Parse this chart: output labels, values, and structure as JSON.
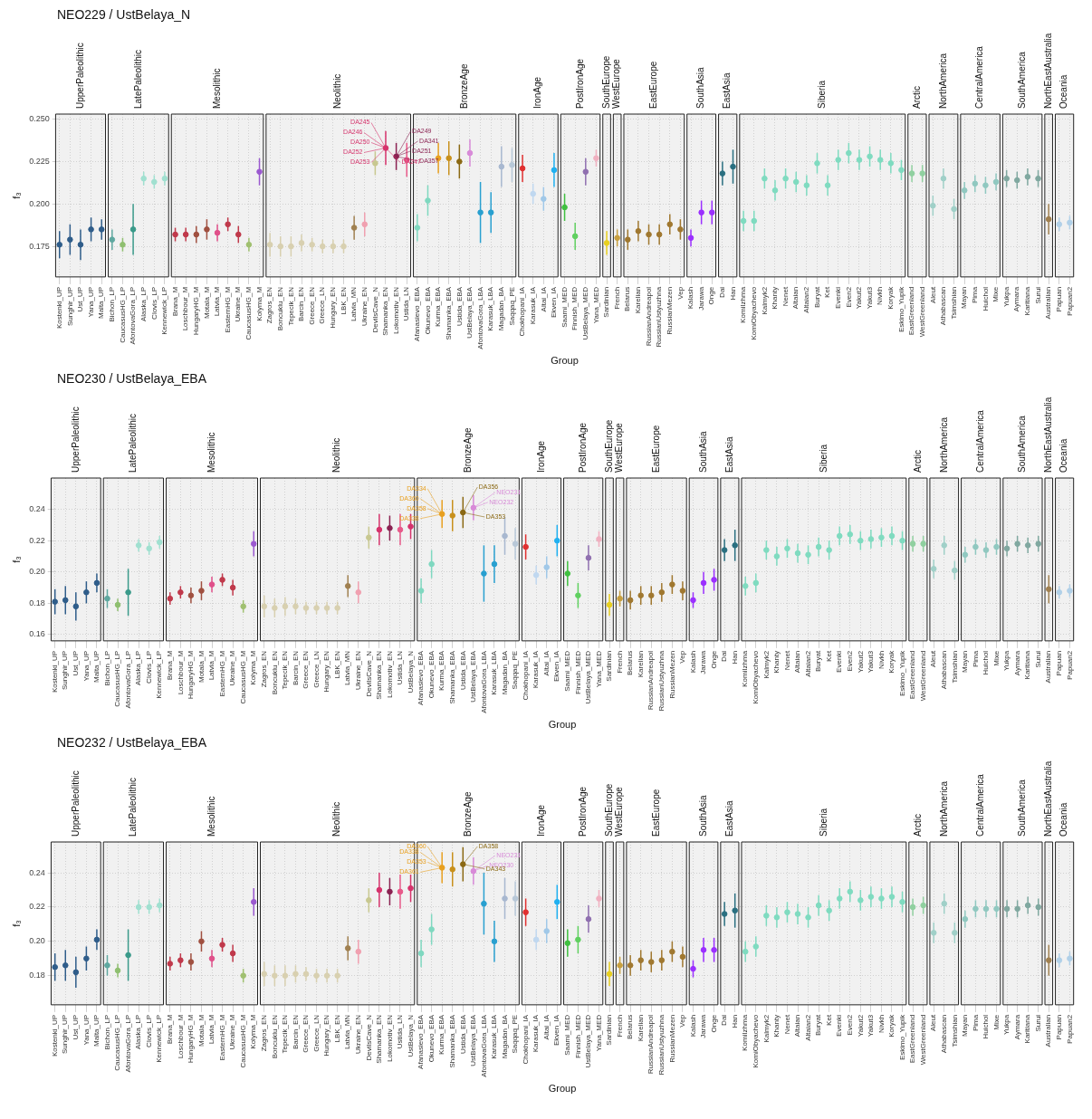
{
  "chart_data": [
    {
      "type": "scatter",
      "title": "NEO229 / UstBelaya_N",
      "xlabel": "Group",
      "ylabel": "f₃",
      "grid": true,
      "marker": "circle",
      "legend": false,
      "categories": [
        "Kostenki_UP",
        "Sunghir_UP",
        "Ust_UP",
        "Yana_UP",
        "Malta_UP",
        "Bichon_LP",
        "CaucasusHG_LP",
        "AfontovaGora_LP",
        "Alaska_LP",
        "Clovis_LP",
        "Kennewick_LP",
        "Brana_M",
        "Loschbour_M",
        "HungaryHG_M",
        "Motala_M",
        "Latvia_M",
        "EasternHG_M",
        "Ukraine_M",
        "CaucasusHG_M",
        "Kolyma_M",
        "Zagros_EN",
        "Boncuklu_EN",
        "Tepecik_EN",
        "Barcin_EN",
        "Greece_EN",
        "Greece_LN",
        "Hungary_EN",
        "LBK_EN",
        "Latvia_MN",
        "Ukraine_EN",
        "DevilsCave_N",
        "Shamanka_EN",
        "Lokomotiv_EN",
        "Ustida_LN",
        "Afanasievo_EBA",
        "Okunevo_EBA",
        "Kurma_EBA",
        "Shamanka_EBA",
        "Ustida_EBA",
        "UstBelaya_EBA",
        "AfontovaGora_LBA",
        "Karasuk_LBA",
        "Magadan_BA",
        "Saqqaq_PE",
        "Chokhopani_IA",
        "Karasuk_IA",
        "Altai_IA",
        "Ekven_IA",
        "Saami_MED",
        "Finnish_MED",
        "UstBelaya_MED",
        "Yana_MED",
        "Sardinian",
        "French",
        "Belarus",
        "Karelian",
        "RussianAndreapol",
        "RussianUstyuzhna",
        "RussianMezen",
        "Vep",
        "Kalash",
        "Jarawa",
        "Onge",
        "Dai",
        "Han",
        "KomiIzhma",
        "KomiObyachevo",
        "Kalmyk2",
        "Khanty",
        "Nenet",
        "Altaian",
        "Altaian2",
        "Buryat",
        "Ket",
        "Evenki",
        "Even2",
        "Yakut2",
        "Yakut3",
        "Nivkh",
        "Koryak",
        "Eskimo_Yupik",
        "EastGreenland",
        "WestGreenland",
        "Aleut",
        "Athabascan",
        "Tsimshian",
        "Mayan",
        "Pima",
        "Huichol",
        "Mixe",
        "Yukpa",
        "Aymara",
        "Karitiana",
        "Surui",
        "Australian",
        "Papuan",
        "Papuan2"
      ],
      "values": [
        0.176,
        0.179,
        0.176,
        0.185,
        0.185,
        0.179,
        0.176,
        0.185,
        0.215,
        0.213,
        0.215,
        0.182,
        0.182,
        0.182,
        0.185,
        0.183,
        0.188,
        0.182,
        0.176,
        0.219,
        0.176,
        0.175,
        0.175,
        0.177,
        0.176,
        0.175,
        0.175,
        0.175,
        0.186,
        0.188,
        0.224,
        0.233,
        0.228,
        0.226,
        0.186,
        0.202,
        0.227,
        0.227,
        0.225,
        0.23,
        0.195,
        0.195,
        0.222,
        0.223,
        0.221,
        0.206,
        0.203,
        0.22,
        0.198,
        0.181,
        0.219,
        0.227,
        0.177,
        0.18,
        0.179,
        0.184,
        0.182,
        0.182,
        0.188,
        0.185,
        0.18,
        0.195,
        0.195,
        0.218,
        0.222,
        0.19,
        0.19,
        0.215,
        0.208,
        0.215,
        0.213,
        0.211,
        0.224,
        0.211,
        0.226,
        0.23,
        0.226,
        0.228,
        0.226,
        0.224,
        0.22,
        0.218,
        0.218,
        0.199,
        0.215,
        0.197,
        0.208,
        0.212,
        0.211,
        0.213,
        0.215,
        0.214,
        0.216,
        0.215,
        0.191,
        0.188,
        0.189
      ],
      "errors": [
        0.008,
        0.009,
        0.009,
        0.007,
        0.006,
        0.006,
        0.004,
        0.015,
        0.004,
        0.004,
        0.004,
        0.004,
        0.004,
        0.005,
        0.006,
        0.005,
        0.004,
        0.005,
        0.004,
        0.008,
        0.007,
        0.006,
        0.006,
        0.005,
        0.004,
        0.004,
        0.004,
        0.004,
        0.007,
        0.007,
        0.007,
        0.01,
        0.008,
        0.01,
        0.008,
        0.009,
        0.009,
        0.01,
        0.01,
        0.008,
        0.018,
        0.012,
        0.012,
        0.01,
        0.008,
        0.006,
        0.007,
        0.01,
        0.008,
        0.008,
        0.008,
        0.005,
        0.007,
        0.005,
        0.006,
        0.006,
        0.006,
        0.006,
        0.006,
        0.006,
        0.005,
        0.007,
        0.007,
        0.007,
        0.01,
        0.006,
        0.006,
        0.006,
        0.006,
        0.006,
        0.006,
        0.006,
        0.006,
        0.006,
        0.006,
        0.006,
        0.006,
        0.006,
        0.006,
        0.006,
        0.006,
        0.005,
        0.005,
        0.006,
        0.006,
        0.006,
        0.005,
        0.005,
        0.005,
        0.005,
        0.005,
        0.005,
        0.005,
        0.005,
        0.009,
        0.004,
        0.004
      ],
      "colors": [
        "#2f5d8a",
        "#2f5d8a",
        "#2f5d8a",
        "#2f5d8a",
        "#2f5d8a",
        "#5fa8a0",
        "#8fbf70",
        "#3a9a8a",
        "#a0e0d0",
        "#a0e0d0",
        "#a0e0d0",
        "#c0394b",
        "#c0394b",
        "#a05040",
        "#a05040",
        "#e0508a",
        "#c0394b",
        "#c0394b",
        "#a0c070",
        "#9b59d0",
        "#d8d0b0",
        "#d8d0b0",
        "#d8d0b0",
        "#d8d0b0",
        "#d8d0b0",
        "#d8d0b0",
        "#d8d0b0",
        "#d8d0b0",
        "#a08050",
        "#f0a0b0",
        "#c8c890",
        "#d6336c",
        "#8b2252",
        "#e85a8a",
        "#7fd8c0",
        "#7fd8c0",
        "#e8a020",
        "#c8901c",
        "#8b6914",
        "#d88ad8",
        "#29a0d0",
        "#29a0d0",
        "#a8b8d0",
        "#b8c8d8",
        "#e03030",
        "#c0d8f0",
        "#a0c8e8",
        "#20b0f0",
        "#40c040",
        "#60d060",
        "#9070b0",
        "#f0b0c0",
        "#e8d020",
        "#c8a040",
        "#a07830",
        "#a07830",
        "#a07830",
        "#a07830",
        "#a07830",
        "#a07830",
        "#9b30ff",
        "#9b30ff",
        "#9b30ff",
        "#2a6f80",
        "#2a6f80",
        "#7fdbc0",
        "#7fdbc0",
        "#7fdbc0",
        "#7fdbc0",
        "#7fdbc0",
        "#7fdbc0",
        "#7fdbc0",
        "#7fdbc0",
        "#7fdbc0",
        "#7fdbc0",
        "#7fdbc0",
        "#7fdbc0",
        "#7fdbc0",
        "#7fdbc0",
        "#7fdbc0",
        "#7fdbc0",
        "#90d0a0",
        "#90d0a0",
        "#a0d0c8",
        "#a0d0c8",
        "#a0d0c8",
        "#90c8c0",
        "#90c8c0",
        "#90c8c0",
        "#90c8c0",
        "#80a8a0",
        "#80a8a0",
        "#80a8a0",
        "#80a8a0",
        "#a08050",
        "#b0d0e8",
        "#b0d0e8"
      ],
      "ylim": [
        0.157,
        0.253
      ],
      "yticks": [
        {
          "value": 0.175,
          "label": "0.175"
        },
        {
          "value": 0.2,
          "label": "0.200"
        },
        {
          "value": 0.225,
          "label": "0.225"
        },
        {
          "value": 0.25,
          "label": "0.250"
        }
      ],
      "bands": [
        {
          "axis": "x",
          "from": "Kostenki_UP",
          "to": "Malta_UP",
          "label": "UpperPaleolithic"
        },
        {
          "axis": "x",
          "from": "Bichon_LP",
          "to": "Kennewick_LP",
          "label": "LatePaleolithic"
        },
        {
          "axis": "x",
          "from": "Brana_M",
          "to": "Kolyma_M",
          "label": "Mesolithic"
        },
        {
          "axis": "x",
          "from": "Zagros_EN",
          "to": "Ustida_LN",
          "label": "Neolithic"
        },
        {
          "axis": "x",
          "from": "Afanasievo_EBA",
          "to": "Saqqaq_PE",
          "label": "BronzeAge"
        },
        {
          "axis": "x",
          "from": "Chokhopani_IA",
          "to": "Ekven_IA",
          "label": "IronAge"
        },
        {
          "axis": "x",
          "from": "Saami_MED",
          "to": "Yana_MED",
          "label": "PostIronAge"
        },
        {
          "axis": "x",
          "from": "Sardinian",
          "to": "Sardinian",
          "label": "SouthEurope"
        },
        {
          "axis": "x",
          "from": "French",
          "to": "French",
          "label": "WestEurope"
        },
        {
          "axis": "x",
          "from": "Belarus",
          "to": "Vep",
          "label": "EastEurope"
        },
        {
          "axis": "x",
          "from": "Kalash",
          "to": "Onge",
          "label": "SouthAsia"
        },
        {
          "axis": "x",
          "from": "Dai",
          "to": "Han",
          "label": "EastAsia"
        },
        {
          "axis": "x",
          "from": "KomiIzhma",
          "to": "Eskimo_Yupik",
          "label": "Siberia"
        },
        {
          "axis": "x",
          "from": "EastGreenland",
          "to": "WestGreenland",
          "label": "Arctic"
        },
        {
          "axis": "x",
          "from": "Aleut",
          "to": "Tsimshian",
          "label": "NorthAmerica"
        },
        {
          "axis": "x",
          "from": "Mayan",
          "to": "Mixe",
          "label": "CentralAmerica"
        },
        {
          "axis": "x",
          "from": "Yukpa",
          "to": "Surui",
          "label": "SouthAmerica"
        },
        {
          "axis": "x",
          "from": "Australian",
          "to": "Australian",
          "label": "NorthEastAustralia"
        },
        {
          "axis": "x",
          "from": "Papuan",
          "to": "Papuan2",
          "label": "Oceania"
        }
      ],
      "annotations": [
        {
          "text": "DA245",
          "x": "Shamanka_EN",
          "y": 0.233
        },
        {
          "text": "DA249",
          "x": "Lokomotiv_EN",
          "y": 0.228
        },
        {
          "text": "DA246",
          "x": "Shamanka_EN",
          "y": 0.233
        },
        {
          "text": "DA341",
          "x": "Lokomotiv_EN",
          "y": 0.228
        },
        {
          "text": "DA250",
          "x": "Shamanka_EN",
          "y": 0.233
        },
        {
          "text": "DA251",
          "x": "Lokomotiv_EN",
          "y": 0.228
        },
        {
          "text": "DA252",
          "x": "Shamanka_EN",
          "y": 0.233
        },
        {
          "text": "DA357",
          "x": "Lokomotiv_EN",
          "y": 0.228
        },
        {
          "text": "DA253",
          "x": "Shamanka_EN",
          "y": 0.233
        },
        {
          "text": "DA247",
          "x": "Shamanka_EN",
          "y": 0.233
        }
      ]
    },
    {
      "type": "scatter",
      "title": "NEO230 / UstBelaya_EBA",
      "xlabel": "Group",
      "ylabel": "f₃",
      "grid": true,
      "marker": "circle",
      "legend": false,
      "categories": [
        "Kostenki_UP",
        "Sunghir_UP",
        "Ust_UP",
        "Yana_UP",
        "Malta_UP",
        "Bichon_LP",
        "CaucasusHG_LP",
        "AfontovaGora_LP",
        "Alaska_LP",
        "Clovis_LP",
        "Kennewick_LP",
        "Brana_M",
        "Loschbour_M",
        "HungaryHG_M",
        "Motala_M",
        "Latvia_M",
        "EasternHG_M",
        "Ukraine_M",
        "CaucasusHG_M",
        "Kolyma_M",
        "Zagros_EN",
        "Boncuklu_EN",
        "Tepecik_EN",
        "Barcin_EN",
        "Greece_EN",
        "Greece_LN",
        "Hungary_EN",
        "LBK_EN",
        "Latvia_MN",
        "Ukraine_EN",
        "DevilsCave_N",
        "Shamanka_EN",
        "Lokomotiv_EN",
        "Ustida_LN",
        "UstBelaya_N",
        "Afanasievo_EBA",
        "Okunevo_EBA",
        "Kurma_EBA",
        "Shamanka_EBA",
        "Ustida_EBA",
        "UstBelaya_EBA",
        "AfontovaGora_LBA",
        "Karasuk_LBA",
        "Magadan_BA",
        "Saqqaq_PE",
        "Chokhopani_IA",
        "Karasuk_IA",
        "Altai_IA",
        "Ekven_IA",
        "Saami_MED",
        "Finnish_MED",
        "UstBelaya_MED",
        "Yana_MED",
        "Sardinian",
        "French",
        "Belarus",
        "Karelian",
        "RussianAndreapol",
        "RussianUstyuzhna",
        "RussianMezen",
        "Vep",
        "Kalash",
        "Jarawa",
        "Onge",
        "Dai",
        "Han",
        "KomiIzhma",
        "KomiObyachevo",
        "Kalmyk2",
        "Khanty",
        "Nenet",
        "Altaian",
        "Altaian2",
        "Buryat",
        "Ket",
        "Evenki",
        "Even2",
        "Yakut2",
        "Yakut3",
        "Nivkh",
        "Koryak",
        "Eskimo_Yupik",
        "EastGreenland",
        "WestGreenland",
        "Aleut",
        "Athabascan",
        "Tsimshian",
        "Mayan",
        "Pima",
        "Huichol",
        "Mixe",
        "Yukpa",
        "Aymara",
        "Karitiana",
        "Surui",
        "Australian",
        "Papuan",
        "Papuan2"
      ],
      "values": [
        0.181,
        0.182,
        0.178,
        0.187,
        0.193,
        0.183,
        0.179,
        0.187,
        0.217,
        0.215,
        0.219,
        0.183,
        0.187,
        0.185,
        0.188,
        0.192,
        0.195,
        0.19,
        0.178,
        0.218,
        0.178,
        0.177,
        0.178,
        0.178,
        0.177,
        0.177,
        0.177,
        0.177,
        0.191,
        0.187,
        0.222,
        0.227,
        0.228,
        0.227,
        0.229,
        0.188,
        0.205,
        0.237,
        0.236,
        0.238,
        0.241,
        0.199,
        0.205,
        0.223,
        0.218,
        0.216,
        0.198,
        0.203,
        0.22,
        0.199,
        0.185,
        0.209,
        0.221,
        0.179,
        0.183,
        0.182,
        0.185,
        0.185,
        0.187,
        0.192,
        0.188,
        0.182,
        0.193,
        0.195,
        0.214,
        0.217,
        0.191,
        0.193,
        0.214,
        0.21,
        0.215,
        0.212,
        0.211,
        0.216,
        0.214,
        0.223,
        0.224,
        0.22,
        0.221,
        0.222,
        0.223,
        0.22,
        0.218,
        0.218,
        0.202,
        0.217,
        0.201,
        0.211,
        0.216,
        0.214,
        0.216,
        0.215,
        0.218,
        0.217,
        0.218,
        0.189,
        0.187,
        0.188
      ],
      "errors": [
        0.008,
        0.009,
        0.009,
        0.007,
        0.006,
        0.006,
        0.004,
        0.015,
        0.004,
        0.004,
        0.004,
        0.004,
        0.004,
        0.005,
        0.006,
        0.005,
        0.004,
        0.005,
        0.004,
        0.008,
        0.007,
        0.006,
        0.006,
        0.005,
        0.004,
        0.004,
        0.004,
        0.004,
        0.007,
        0.007,
        0.007,
        0.01,
        0.008,
        0.01,
        0.008,
        0.008,
        0.009,
        0.009,
        0.01,
        0.01,
        0.008,
        0.018,
        0.012,
        0.012,
        0.01,
        0.008,
        0.006,
        0.007,
        0.01,
        0.008,
        0.008,
        0.008,
        0.005,
        0.007,
        0.005,
        0.006,
        0.006,
        0.006,
        0.006,
        0.006,
        0.006,
        0.005,
        0.007,
        0.007,
        0.007,
        0.01,
        0.006,
        0.006,
        0.006,
        0.006,
        0.006,
        0.006,
        0.006,
        0.006,
        0.006,
        0.006,
        0.006,
        0.006,
        0.006,
        0.006,
        0.006,
        0.006,
        0.005,
        0.005,
        0.006,
        0.006,
        0.006,
        0.005,
        0.005,
        0.005,
        0.005,
        0.005,
        0.005,
        0.005,
        0.005,
        0.009,
        0.004,
        0.004
      ],
      "colors": [
        "#2f5d8a",
        "#2f5d8a",
        "#2f5d8a",
        "#2f5d8a",
        "#2f5d8a",
        "#5fa8a0",
        "#8fbf70",
        "#3a9a8a",
        "#a0e0d0",
        "#a0e0d0",
        "#a0e0d0",
        "#c0394b",
        "#c0394b",
        "#a05040",
        "#a05040",
        "#e0508a",
        "#c0394b",
        "#c0394b",
        "#a0c070",
        "#9b59d0",
        "#d8d0b0",
        "#d8d0b0",
        "#d8d0b0",
        "#d8d0b0",
        "#d8d0b0",
        "#d8d0b0",
        "#d8d0b0",
        "#d8d0b0",
        "#a08050",
        "#f0a0b0",
        "#c8c890",
        "#d6336c",
        "#8b2252",
        "#e85a8a",
        "#d6336c",
        "#7fd8c0",
        "#7fd8c0",
        "#e8a020",
        "#c8901c",
        "#8b6914",
        "#d88ad8",
        "#29a0d0",
        "#29a0d0",
        "#a8b8d0",
        "#b8c8d8",
        "#e03030",
        "#c0d8f0",
        "#a0c8e8",
        "#20b0f0",
        "#40c040",
        "#60d060",
        "#9070b0",
        "#f0b0c0",
        "#e8d020",
        "#c8a040",
        "#a07830",
        "#a07830",
        "#a07830",
        "#a07830",
        "#a07830",
        "#a07830",
        "#9b30ff",
        "#9b30ff",
        "#9b30ff",
        "#2a6f80",
        "#2a6f80",
        "#7fdbc0",
        "#7fdbc0",
        "#7fdbc0",
        "#7fdbc0",
        "#7fdbc0",
        "#7fdbc0",
        "#7fdbc0",
        "#7fdbc0",
        "#7fdbc0",
        "#7fdbc0",
        "#7fdbc0",
        "#7fdbc0",
        "#7fdbc0",
        "#7fdbc0",
        "#7fdbc0",
        "#7fdbc0",
        "#90d0a0",
        "#90d0a0",
        "#a0d0c8",
        "#a0d0c8",
        "#a0d0c8",
        "#90c8c0",
        "#90c8c0",
        "#90c8c0",
        "#90c8c0",
        "#80a8a0",
        "#80a8a0",
        "#80a8a0",
        "#80a8a0",
        "#a08050",
        "#b0d0e8",
        "#b0d0e8"
      ],
      "ylim": [
        0.156,
        0.26
      ],
      "yticks": [
        {
          "value": 0.16,
          "label": "0.16"
        },
        {
          "value": 0.18,
          "label": "0.18"
        },
        {
          "value": 0.2,
          "label": "0.20"
        },
        {
          "value": 0.22,
          "label": "0.22"
        },
        {
          "value": 0.24,
          "label": "0.24"
        }
      ],
      "bands": [
        {
          "axis": "x",
          "from": "Kostenki_UP",
          "to": "Malta_UP",
          "label": "UpperPaleolithic"
        },
        {
          "axis": "x",
          "from": "Bichon_LP",
          "to": "Kennewick_LP",
          "label": "LatePaleolithic"
        },
        {
          "axis": "x",
          "from": "Brana_M",
          "to": "Kolyma_M",
          "label": "Mesolithic"
        },
        {
          "axis": "x",
          "from": "Zagros_EN",
          "to": "UstBelaya_N",
          "label": "Neolithic"
        },
        {
          "axis": "x",
          "from": "Afanasievo_EBA",
          "to": "Saqqaq_PE",
          "label": "BronzeAge"
        },
        {
          "axis": "x",
          "from": "Chokhopani_IA",
          "to": "Ekven_IA",
          "label": "IronAge"
        },
        {
          "axis": "x",
          "from": "Saami_MED",
          "to": "Yana_MED",
          "label": "PostIronAge"
        },
        {
          "axis": "x",
          "from": "Sardinian",
          "to": "Sardinian",
          "label": "SouthEurope"
        },
        {
          "axis": "x",
          "from": "French",
          "to": "French",
          "label": "WestEurope"
        },
        {
          "axis": "x",
          "from": "Belarus",
          "to": "Vep",
          "label": "EastEurope"
        },
        {
          "axis": "x",
          "from": "Kalash",
          "to": "Onge",
          "label": "SouthAsia"
        },
        {
          "axis": "x",
          "from": "Dai",
          "to": "Han",
          "label": "EastAsia"
        },
        {
          "axis": "x",
          "from": "KomiIzhma",
          "to": "Eskimo_Yupik",
          "label": "Siberia"
        },
        {
          "axis": "x",
          "from": "EastGreenland",
          "to": "WestGreenland",
          "label": "Arctic"
        },
        {
          "axis": "x",
          "from": "Aleut",
          "to": "Tsimshian",
          "label": "NorthAmerica"
        },
        {
          "axis": "x",
          "from": "Mayan",
          "to": "Mixe",
          "label": "CentralAmerica"
        },
        {
          "axis": "x",
          "from": "Yukpa",
          "to": "Surui",
          "label": "SouthAmerica"
        },
        {
          "axis": "x",
          "from": "Australian",
          "to": "Australian",
          "label": "NorthEastAustralia"
        },
        {
          "axis": "x",
          "from": "Papuan",
          "to": "Papuan2",
          "label": "Oceania"
        }
      ],
      "annotations": [
        {
          "text": "DA334",
          "x": "Kurma_EBA",
          "y": 0.237
        },
        {
          "text": "DA356",
          "x": "Ustida_EBA",
          "y": 0.238
        },
        {
          "text": "DA360",
          "x": "Kurma_EBA",
          "y": 0.237
        },
        {
          "text": "NEO231",
          "x": "UstBelaya_EBA",
          "y": 0.241
        },
        {
          "text": "DA358",
          "x": "Kurma_EBA",
          "y": 0.237
        },
        {
          "text": "NEO232",
          "x": "UstBelaya_EBA",
          "y": 0.241
        },
        {
          "text": "DA338",
          "x": "Kurma_EBA",
          "y": 0.237
        },
        {
          "text": "DA353",
          "x": "Ustida_EBA",
          "y": 0.238
        }
      ]
    },
    {
      "type": "scatter",
      "title": "NEO232 / UstBelaya_EBA",
      "xlabel": "Group",
      "ylabel": "f₃",
      "grid": true,
      "marker": "circle",
      "legend": false,
      "categories": [
        "Kostenki_UP",
        "Sunghir_UP",
        "Ust_UP",
        "Yana_UP",
        "Malta_UP",
        "Bichon_LP",
        "CaucasusHG_LP",
        "AfontovaGora_LP",
        "Alaska_LP",
        "Clovis_LP",
        "Kennewick_LP",
        "Brana_M",
        "Loschbour_M",
        "HungaryHG_M",
        "Motala_M",
        "Latvia_M",
        "EasternHG_M",
        "Ukraine_M",
        "CaucasusHG_M",
        "Kolyma_M",
        "Zagros_EN",
        "Boncuklu_EN",
        "Tepecik_EN",
        "Barcin_EN",
        "Greece_EN",
        "Greece_LN",
        "Hungary_EN",
        "LBK_EN",
        "Latvia_MN",
        "Ukraine_EN",
        "DevilsCave_N",
        "Shamanka_EN",
        "Lokomotiv_EN",
        "Ustida_LN",
        "UstBelaya_N",
        "Afanasievo_EBA",
        "Okunevo_EBA",
        "Kurma_EBA",
        "Shamanka_EBA",
        "Ustida_EBA",
        "UstBelaya_EBA",
        "AfontovaGora_LBA",
        "Karasuk_LBA",
        "Magadan_BA",
        "Saqqaq_PE",
        "Chokhopani_IA",
        "Karasuk_IA",
        "Altai_IA",
        "Ekven_IA",
        "Saami_MED",
        "Finnish_MED",
        "UstBelaya_MED",
        "Yana_MED",
        "Sardinian",
        "French",
        "Belarus",
        "Karelian",
        "RussianAndreapol",
        "RussianUstyuzhna",
        "RussianMezen",
        "Vep",
        "Kalash",
        "Jarawa",
        "Onge",
        "Dai",
        "Han",
        "KomiIzhma",
        "KomiObyachevo",
        "Kalmyk2",
        "Khanty",
        "Nenet",
        "Altaian",
        "Altaian2",
        "Buryat",
        "Ket",
        "Evenki",
        "Even2",
        "Yakut2",
        "Yakut3",
        "Nivkh",
        "Koryak",
        "Eskimo_Yupik",
        "EastGreenland",
        "WestGreenland",
        "Aleut",
        "Athabascan",
        "Tsimshian",
        "Mayan",
        "Pima",
        "Huichol",
        "Mixe",
        "Yukpa",
        "Aymara",
        "Karitiana",
        "Surui",
        "Australian",
        "Papuan",
        "Papuan2"
      ],
      "values": [
        0.185,
        0.186,
        0.182,
        0.19,
        0.201,
        0.186,
        0.183,
        0.192,
        0.22,
        0.22,
        0.221,
        0.187,
        0.189,
        0.188,
        0.2,
        0.19,
        0.198,
        0.193,
        0.18,
        0.223,
        0.181,
        0.18,
        0.18,
        0.181,
        0.181,
        0.18,
        0.18,
        0.18,
        0.196,
        0.194,
        0.224,
        0.23,
        0.229,
        0.229,
        0.231,
        0.193,
        0.207,
        0.243,
        0.242,
        0.245,
        0.241,
        0.222,
        0.2,
        0.225,
        0.225,
        0.217,
        0.201,
        0.206,
        0.223,
        0.199,
        0.201,
        0.213,
        0.225,
        0.181,
        0.186,
        0.186,
        0.189,
        0.188,
        0.189,
        0.194,
        0.191,
        0.184,
        0.195,
        0.195,
        0.216,
        0.218,
        0.194,
        0.197,
        0.215,
        0.214,
        0.217,
        0.216,
        0.214,
        0.221,
        0.218,
        0.225,
        0.229,
        0.224,
        0.226,
        0.225,
        0.226,
        0.223,
        0.22,
        0.221,
        0.205,
        0.222,
        0.205,
        0.213,
        0.219,
        0.219,
        0.219,
        0.219,
        0.219,
        0.221,
        0.22,
        0.189,
        0.189,
        0.19
      ],
      "errors": [
        0.008,
        0.009,
        0.009,
        0.007,
        0.006,
        0.006,
        0.004,
        0.015,
        0.004,
        0.004,
        0.004,
        0.004,
        0.004,
        0.005,
        0.006,
        0.005,
        0.004,
        0.005,
        0.004,
        0.008,
        0.007,
        0.006,
        0.006,
        0.005,
        0.004,
        0.004,
        0.004,
        0.004,
        0.007,
        0.007,
        0.007,
        0.01,
        0.008,
        0.01,
        0.008,
        0.008,
        0.009,
        0.009,
        0.01,
        0.01,
        0.008,
        0.018,
        0.012,
        0.012,
        0.01,
        0.008,
        0.006,
        0.007,
        0.01,
        0.008,
        0.008,
        0.008,
        0.005,
        0.007,
        0.005,
        0.006,
        0.006,
        0.006,
        0.006,
        0.006,
        0.006,
        0.005,
        0.007,
        0.007,
        0.007,
        0.01,
        0.006,
        0.006,
        0.006,
        0.006,
        0.006,
        0.006,
        0.006,
        0.006,
        0.006,
        0.006,
        0.006,
        0.006,
        0.006,
        0.006,
        0.006,
        0.006,
        0.005,
        0.005,
        0.006,
        0.006,
        0.006,
        0.005,
        0.005,
        0.005,
        0.005,
        0.005,
        0.005,
        0.005,
        0.005,
        0.009,
        0.004,
        0.004
      ],
      "colors": [
        "#2f5d8a",
        "#2f5d8a",
        "#2f5d8a",
        "#2f5d8a",
        "#2f5d8a",
        "#5fa8a0",
        "#8fbf70",
        "#3a9a8a",
        "#a0e0d0",
        "#a0e0d0",
        "#a0e0d0",
        "#c0394b",
        "#c0394b",
        "#a05040",
        "#a05040",
        "#e0508a",
        "#c0394b",
        "#c0394b",
        "#a0c070",
        "#9b59d0",
        "#d8d0b0",
        "#d8d0b0",
        "#d8d0b0",
        "#d8d0b0",
        "#d8d0b0",
        "#d8d0b0",
        "#d8d0b0",
        "#d8d0b0",
        "#a08050",
        "#f0a0b0",
        "#c8c890",
        "#d6336c",
        "#8b2252",
        "#e85a8a",
        "#d6336c",
        "#7fd8c0",
        "#7fd8c0",
        "#e8a020",
        "#c8901c",
        "#8b6914",
        "#d88ad8",
        "#29a0d0",
        "#29a0d0",
        "#a8b8d0",
        "#b8c8d8",
        "#e03030",
        "#c0d8f0",
        "#a0c8e8",
        "#20b0f0",
        "#40c040",
        "#60d060",
        "#9070b0",
        "#f0b0c0",
        "#e8d020",
        "#c8a040",
        "#a07830",
        "#a07830",
        "#a07830",
        "#a07830",
        "#a07830",
        "#a07830",
        "#9b30ff",
        "#9b30ff",
        "#9b30ff",
        "#2a6f80",
        "#2a6f80",
        "#7fdbc0",
        "#7fdbc0",
        "#7fdbc0",
        "#7fdbc0",
        "#7fdbc0",
        "#7fdbc0",
        "#7fdbc0",
        "#7fdbc0",
        "#7fdbc0",
        "#7fdbc0",
        "#7fdbc0",
        "#7fdbc0",
        "#7fdbc0",
        "#7fdbc0",
        "#7fdbc0",
        "#7fdbc0",
        "#90d0a0",
        "#90d0a0",
        "#a0d0c8",
        "#a0d0c8",
        "#a0d0c8",
        "#90c8c0",
        "#90c8c0",
        "#90c8c0",
        "#90c8c0",
        "#80a8a0",
        "#80a8a0",
        "#80a8a0",
        "#80a8a0",
        "#a08050",
        "#b0d0e8",
        "#b0d0e8"
      ],
      "ylim": [
        0.163,
        0.258
      ],
      "yticks": [
        {
          "value": 0.18,
          "label": "0.18"
        },
        {
          "value": 0.2,
          "label": "0.20"
        },
        {
          "value": 0.22,
          "label": "0.22"
        },
        {
          "value": 0.24,
          "label": "0.24"
        }
      ],
      "bands": [
        {
          "axis": "x",
          "from": "Kostenki_UP",
          "to": "Malta_UP",
          "label": "UpperPaleolithic"
        },
        {
          "axis": "x",
          "from": "Bichon_LP",
          "to": "Kennewick_LP",
          "label": "LatePaleolithic"
        },
        {
          "axis": "x",
          "from": "Brana_M",
          "to": "Kolyma_M",
          "label": "Mesolithic"
        },
        {
          "axis": "x",
          "from": "Zagros_EN",
          "to": "UstBelaya_N",
          "label": "Neolithic"
        },
        {
          "axis": "x",
          "from": "Afanasievo_EBA",
          "to": "Saqqaq_PE",
          "label": "BronzeAge"
        },
        {
          "axis": "x",
          "from": "Chokhopani_IA",
          "to": "Ekven_IA",
          "label": "IronAge"
        },
        {
          "axis": "x",
          "from": "Saami_MED",
          "to": "Yana_MED",
          "label": "PostIronAge"
        },
        {
          "axis": "x",
          "from": "Sardinian",
          "to": "Sardinian",
          "label": "SouthEurope"
        },
        {
          "axis": "x",
          "from": "French",
          "to": "French",
          "label": "WestEurope"
        },
        {
          "axis": "x",
          "from": "Belarus",
          "to": "Vep",
          "label": "EastEurope"
        },
        {
          "axis": "x",
          "from": "Kalash",
          "to": "Onge",
          "label": "SouthAsia"
        },
        {
          "axis": "x",
          "from": "Dai",
          "to": "Han",
          "label": "EastAsia"
        },
        {
          "axis": "x",
          "from": "KomiIzhma",
          "to": "Eskimo_Yupik",
          "label": "Siberia"
        },
        {
          "axis": "x",
          "from": "EastGreenland",
          "to": "WestGreenland",
          "label": "Arctic"
        },
        {
          "axis": "x",
          "from": "Aleut",
          "to": "Tsimshian",
          "label": "NorthAmerica"
        },
        {
          "axis": "x",
          "from": "Mayan",
          "to": "Mixe",
          "label": "CentralAmerica"
        },
        {
          "axis": "x",
          "from": "Yukpa",
          "to": "Surui",
          "label": "SouthAmerica"
        },
        {
          "axis": "x",
          "from": "Australian",
          "to": "Australian",
          "label": "NorthEastAustralia"
        },
        {
          "axis": "x",
          "from": "Papuan",
          "to": "Papuan2",
          "label": "Oceania"
        }
      ],
      "annotations": [
        {
          "text": "DA360",
          "x": "Kurma_EBA",
          "y": 0.243
        },
        {
          "text": "DA358",
          "x": "Ustida_EBA",
          "y": 0.245
        },
        {
          "text": "DA338",
          "x": "Kurma_EBA",
          "y": 0.243
        },
        {
          "text": "NEO231",
          "x": "UstBelaya_EBA",
          "y": 0.241
        },
        {
          "text": "DA353",
          "x": "Kurma_EBA",
          "y": 0.243
        },
        {
          "text": "NEO230",
          "x": "UstBelaya_EBA",
          "y": 0.241
        },
        {
          "text": "DA361",
          "x": "Kurma_EBA",
          "y": 0.243
        },
        {
          "text": "DA343",
          "x": "Ustida_EBA",
          "y": 0.245
        }
      ]
    }
  ]
}
